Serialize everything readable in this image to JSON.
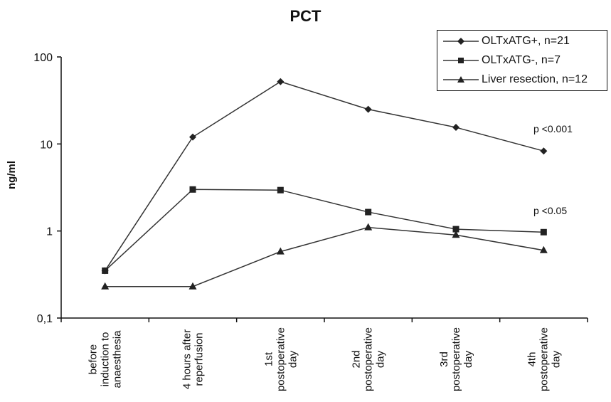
{
  "chart_data": {
    "type": "line",
    "title": "PCT",
    "ylabel": "ng/ml",
    "xlabel": "",
    "yscale": "log",
    "ylim": [
      0.1,
      100
    ],
    "yticks": [
      "0,1",
      "1",
      "10",
      "100"
    ],
    "grid": false,
    "legend_position": "top-right",
    "categories": [
      "before induction to anaesthesia",
      "4 hours after reperfusion",
      "1st postoperative day",
      "2nd postoperative day",
      "3rd postoperative day",
      "4th postoperative day"
    ],
    "category_lines": [
      [
        "before",
        "induction to",
        "anaesthesia"
      ],
      [
        "4 hours after",
        "reperfusion"
      ],
      [
        "1st",
        "postoperative",
        "day"
      ],
      [
        "2nd",
        "postoperative",
        "day"
      ],
      [
        "3rd",
        "postoperative",
        "day"
      ],
      [
        "4th",
        "postoperative",
        "day"
      ]
    ],
    "series": [
      {
        "name": "OLTxATG+, n=21",
        "marker": "diamond",
        "values": [
          0.35,
          12,
          52,
          25,
          15.5,
          8.3
        ]
      },
      {
        "name": "OLTxATG-, n=7",
        "marker": "square",
        "values": [
          0.35,
          3.0,
          2.95,
          1.65,
          1.05,
          0.97
        ]
      },
      {
        "name": "Liver resection, n=12",
        "marker": "triangle",
        "values": [
          0.23,
          0.23,
          0.58,
          1.1,
          0.9,
          0.6
        ]
      }
    ],
    "annotations": [
      "p <0.001",
      "p <0.05"
    ]
  }
}
